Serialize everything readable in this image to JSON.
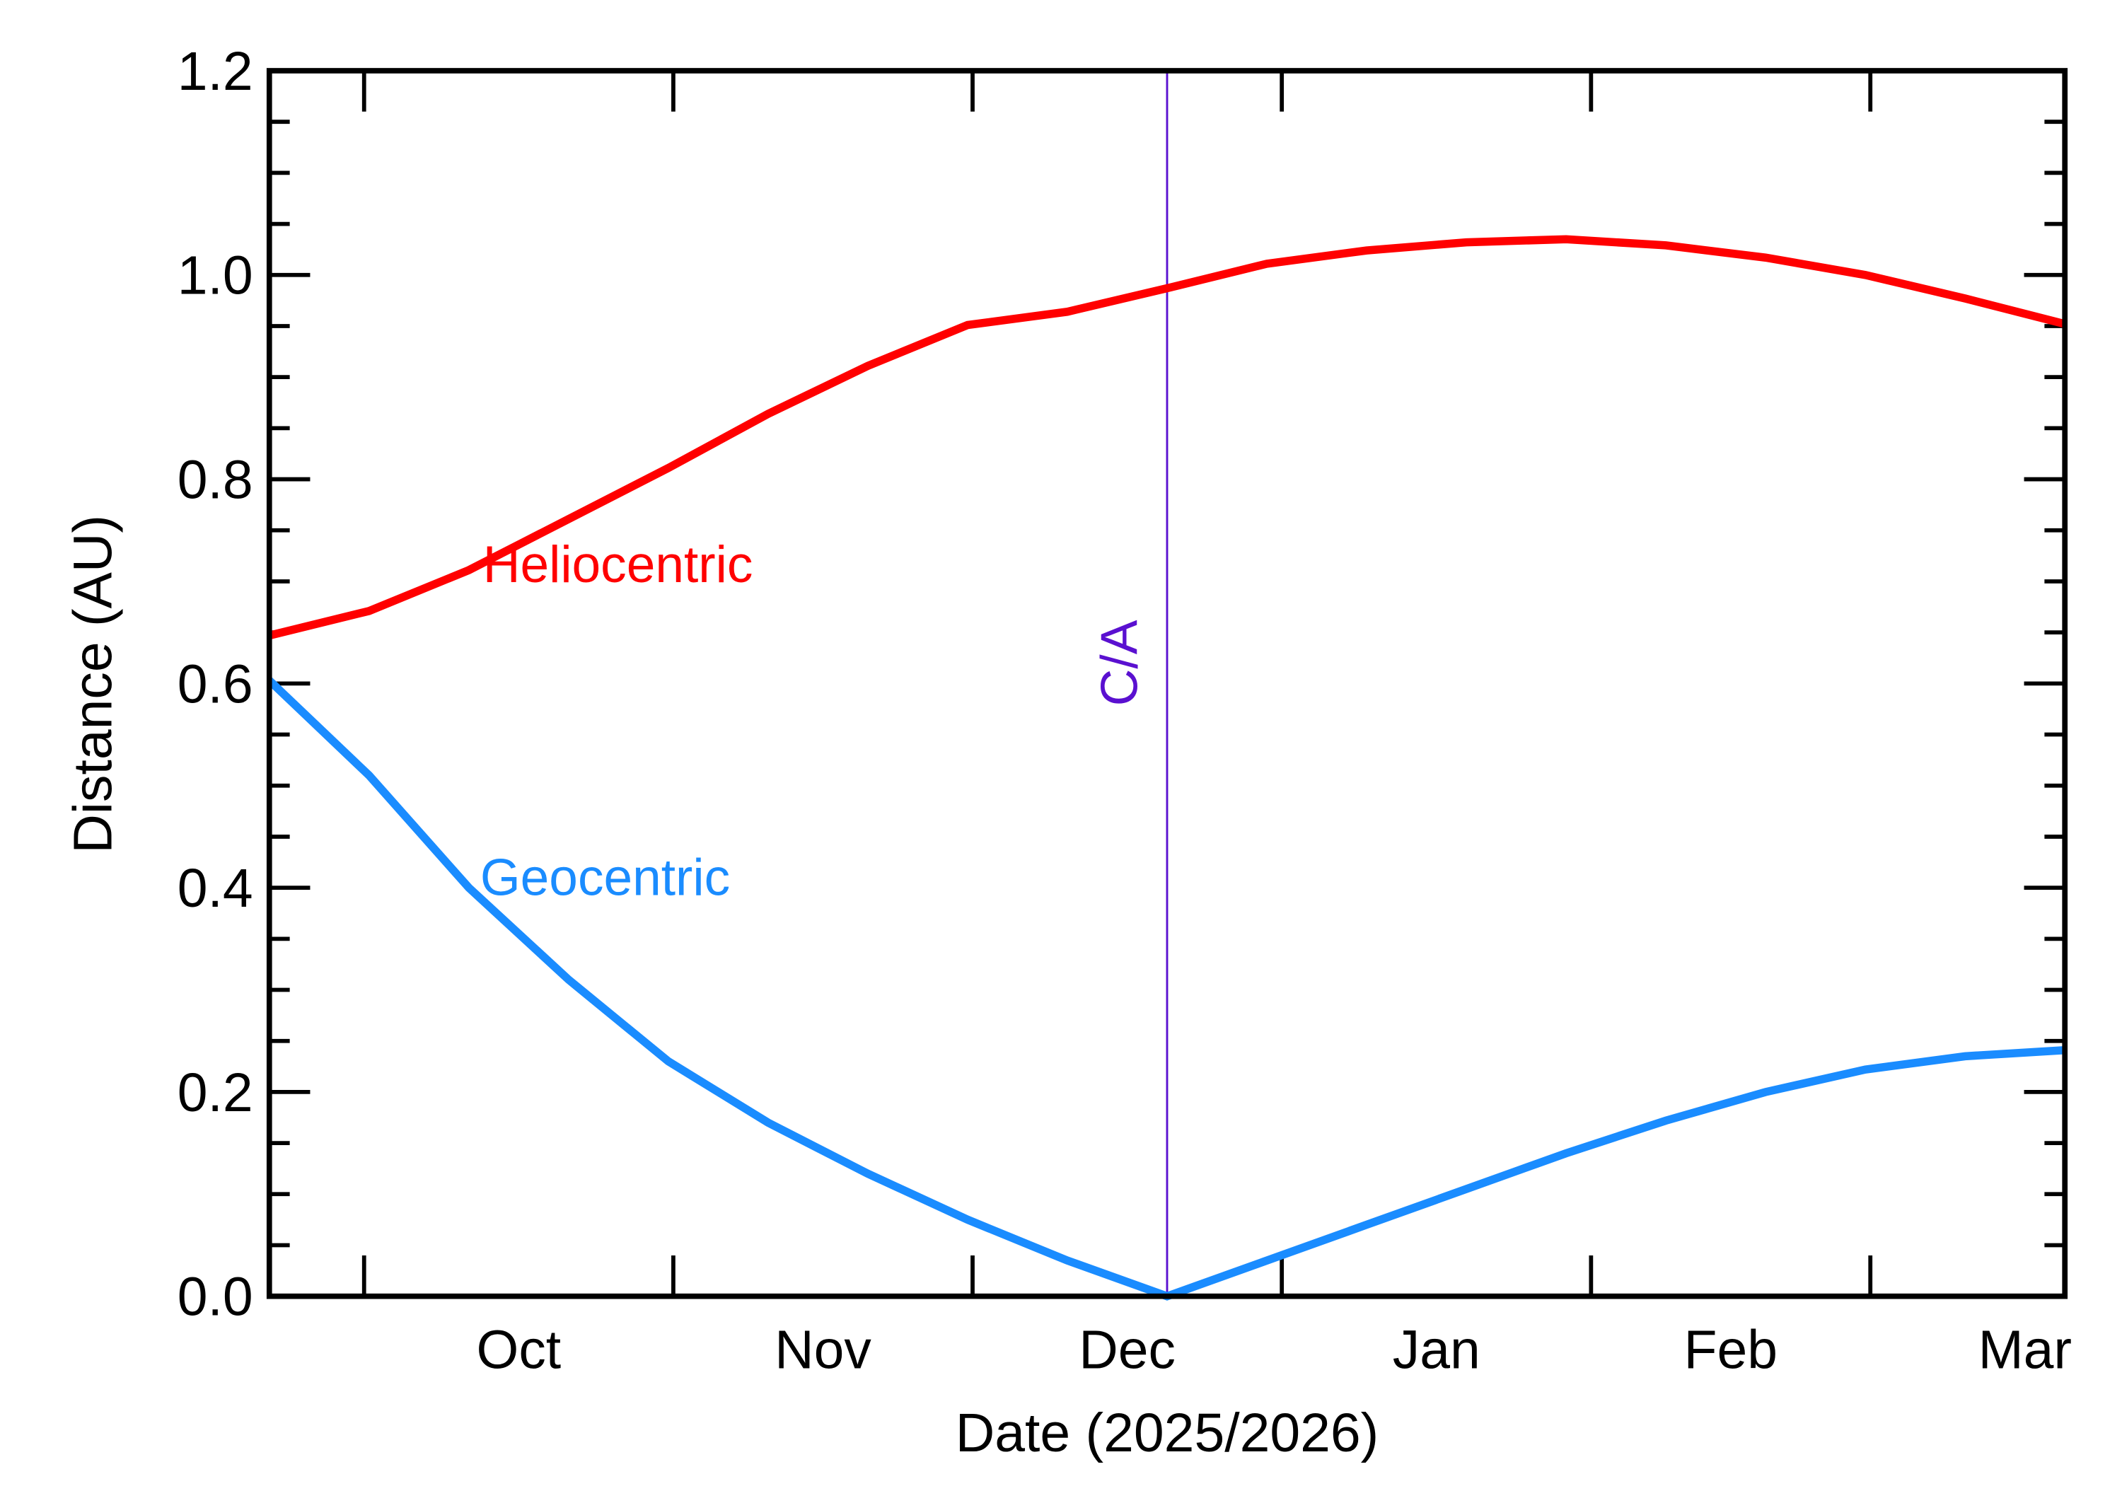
{
  "chart_data": {
    "type": "line",
    "x_label": "Date (2025/2026)",
    "y_label": "Distance (AU)",
    "x": [
      0,
      10,
      20,
      30,
      40,
      50,
      60,
      70,
      80,
      90,
      100,
      110,
      120,
      130,
      140,
      150,
      160,
      170,
      180
    ],
    "xlim": [
      0,
      180
    ],
    "xticks": [
      9.5,
      40.5,
      70.5,
      101.5,
      132.5,
      160.5
    ],
    "xlabels": [
      {
        "value": 25,
        "label": "Oct"
      },
      {
        "value": 55.5,
        "label": "Nov"
      },
      {
        "value": 86,
        "label": "Dec"
      },
      {
        "value": 117,
        "label": "Jan"
      },
      {
        "value": 146.5,
        "label": "Feb"
      },
      {
        "value": 176,
        "label": "Mar"
      }
    ],
    "ylim": [
      0,
      1.2
    ],
    "yticks": [
      {
        "value": 0,
        "label": "0.0"
      },
      0.2,
      0.4,
      0.6,
      0.8,
      {
        "value": 1,
        "label": "1.0"
      },
      1.2
    ],
    "yminorticks": [
      0.05,
      0.1,
      0.15,
      0.25,
      0.3,
      0.35,
      0.45,
      0.5,
      0.55,
      0.65,
      0.7,
      0.75,
      0.85,
      0.9,
      0.95,
      1.05,
      1.1,
      1.15
    ],
    "series": [
      {
        "name": "Heliocentric",
        "color": "#ff0000",
        "values": [
          0.647,
          0.671,
          0.711,
          0.761,
          0.811,
          0.864,
          0.911,
          0.951,
          0.964,
          0.987,
          1.011,
          1.024,
          1.032,
          1.035,
          1.029,
          1.017,
          1.0,
          0.977,
          0.952
        ]
      },
      {
        "name": "Geocentric",
        "color": "#1a8cff",
        "values": [
          0.603,
          0.51,
          0.4,
          0.31,
          0.23,
          0.17,
          0.12,
          0.075,
          0.035,
          0.0,
          0.035,
          0.07,
          0.105,
          0.14,
          0.172,
          0.2,
          0.222,
          0.235,
          0.241
        ]
      }
    ],
    "marker": {
      "x": 90,
      "label": "C/A",
      "color": "#5a10d0"
    }
  }
}
